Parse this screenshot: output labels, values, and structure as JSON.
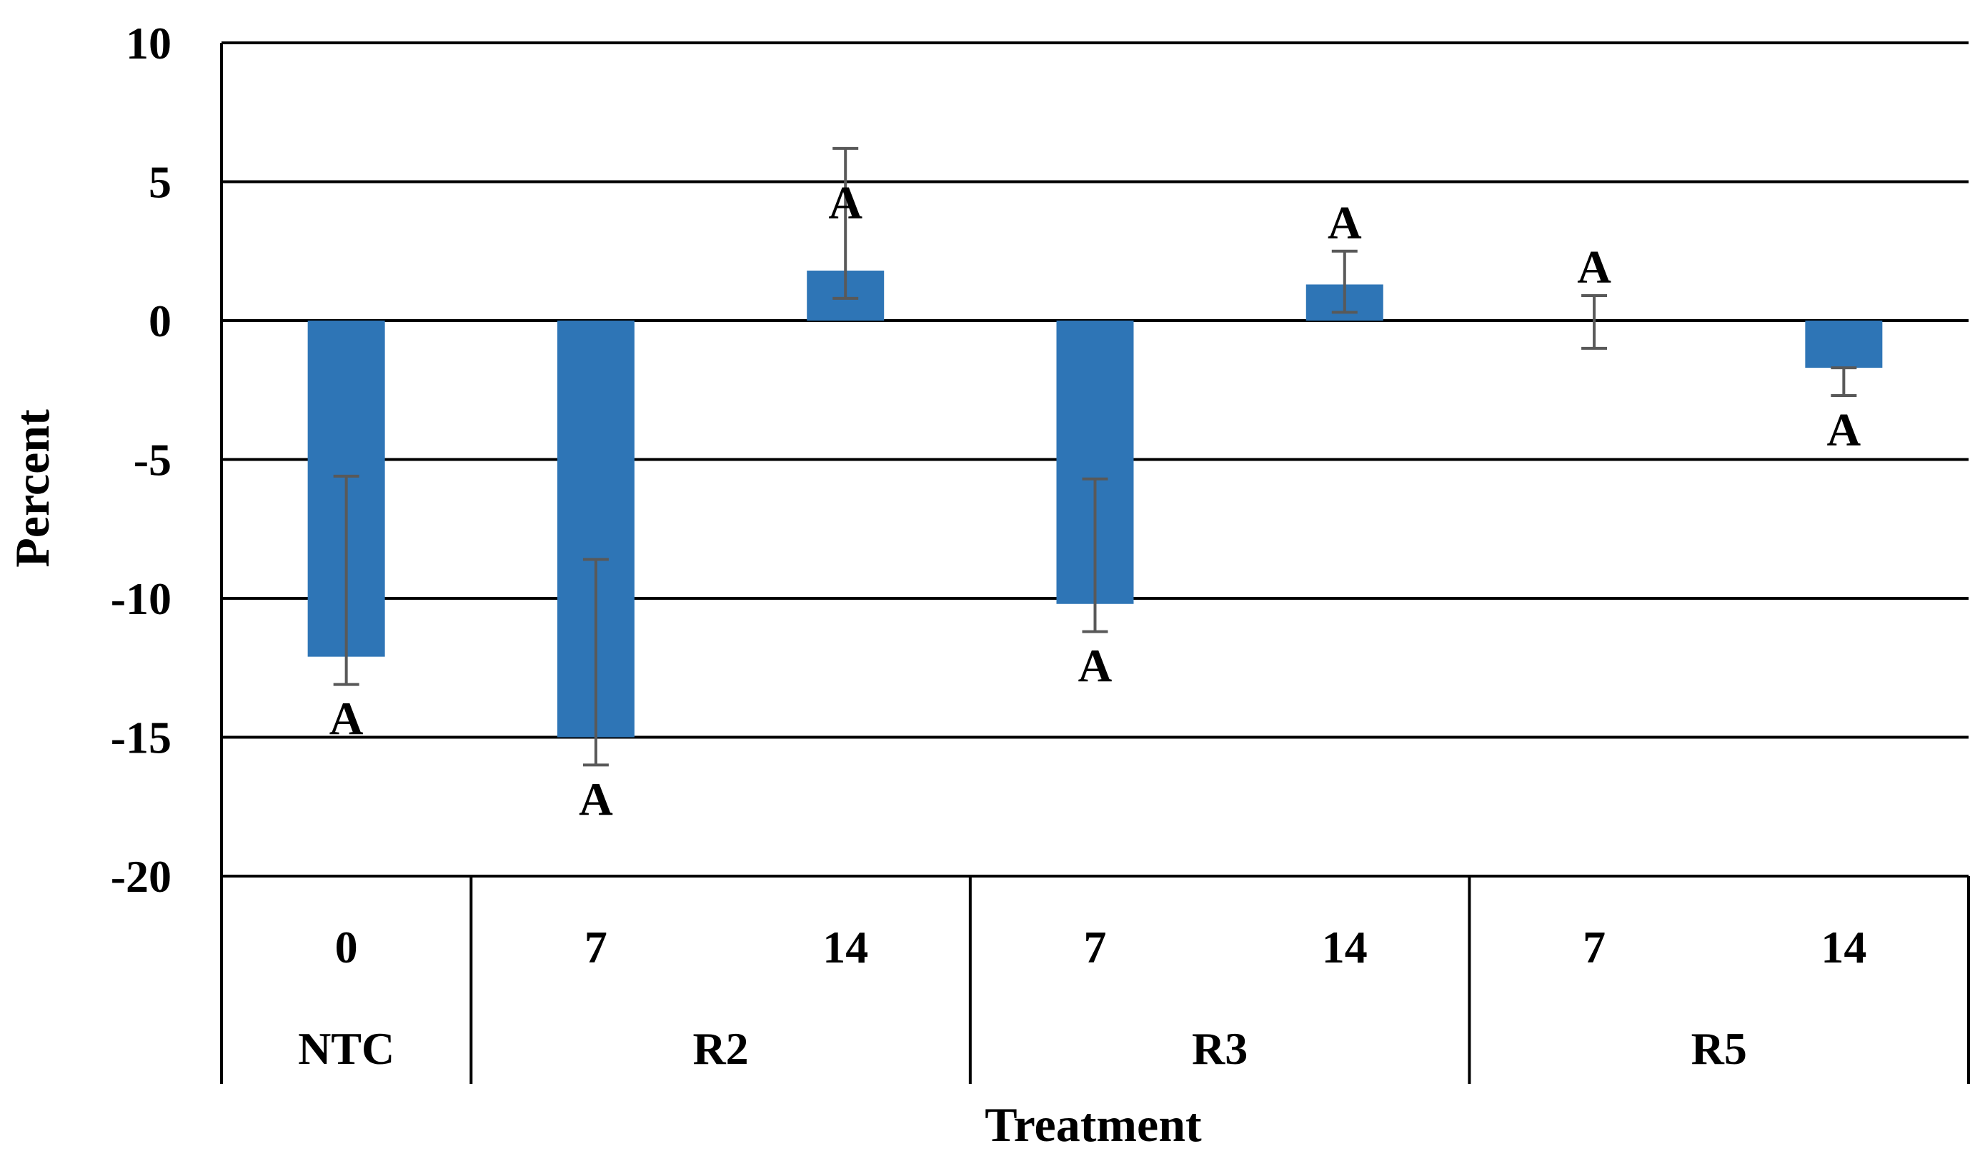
{
  "chart_data": {
    "type": "bar",
    "xlabel": "Treatment",
    "ylabel": "Percent",
    "ylim": [
      -20,
      10
    ],
    "yticks": [
      10,
      5,
      0,
      -5,
      -10,
      -15,
      -20
    ],
    "grid": true,
    "bar_color": "#2E75B6",
    "groups": [
      {
        "label": "NTC",
        "categories": [
          "0"
        ]
      },
      {
        "label": "R2",
        "categories": [
          "7",
          "14"
        ]
      },
      {
        "label": "R3",
        "categories": [
          "7",
          "14"
        ]
      },
      {
        "label": "R5",
        "categories": [
          "7",
          "14"
        ]
      }
    ],
    "bars": [
      {
        "group": "NTC",
        "category": "0",
        "value": -12.1,
        "err_low": -13.1,
        "err_high": -5.6,
        "letter": "A"
      },
      {
        "group": "R2",
        "category": "7",
        "value": -15.0,
        "err_low": -16.0,
        "err_high": -8.6,
        "letter": "A"
      },
      {
        "group": "R2",
        "category": "14",
        "value": 1.8,
        "err_low": 0.8,
        "err_high": 6.2,
        "letter": "A"
      },
      {
        "group": "R3",
        "category": "7",
        "value": -10.2,
        "err_low": -11.2,
        "err_high": -5.7,
        "letter": "A"
      },
      {
        "group": "R3",
        "category": "14",
        "value": 1.3,
        "err_low": 0.3,
        "err_high": 2.5,
        "letter": "A"
      },
      {
        "group": "R5",
        "category": "7",
        "value": 0.0,
        "err_low": -1.0,
        "err_high": 0.9,
        "letter": "A"
      },
      {
        "group": "R5",
        "category": "14",
        "value": -1.7,
        "err_low": -2.7,
        "err_high": -1.7,
        "letter": "A"
      }
    ]
  }
}
